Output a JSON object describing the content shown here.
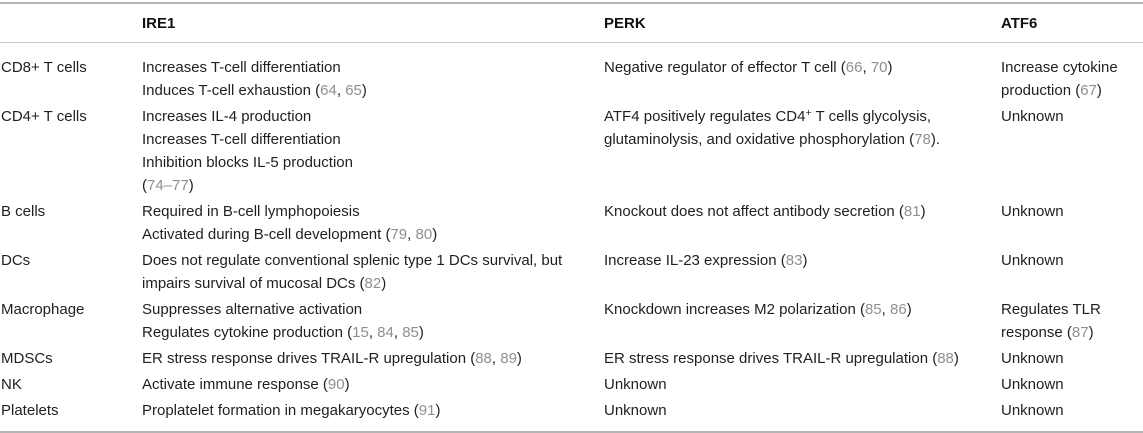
{
  "colors": {
    "text": "#1f1f1f",
    "citation_link": "#8f8f8f",
    "rule_heavy": "#b5b5b5",
    "rule_light": "#c6c6c6",
    "background": "#ffffff"
  },
  "table": {
    "columns": [
      "",
      "IRE1",
      "PERK",
      "ATF6"
    ],
    "column_keys": [
      "ire1",
      "perk",
      "atf6"
    ],
    "rows": [
      {
        "label": "CD8+ T cells",
        "cells": [
          [
            [
              {
                "t": "Increases T-cell differentiation"
              }
            ],
            [
              {
                "t": "Induces T-cell exhaustion ("
              },
              {
                "t": "64",
                "c": true
              },
              {
                "t": ", "
              },
              {
                "t": "65",
                "c": true
              },
              {
                "t": ")"
              }
            ]
          ],
          [
            [
              {
                "t": "Negative regulator of effector T cell ("
              },
              {
                "t": "66",
                "c": true
              },
              {
                "t": ", "
              },
              {
                "t": "70",
                "c": true
              },
              {
                "t": ")"
              }
            ]
          ],
          [
            [
              {
                "t": "Increase cytokine production ("
              },
              {
                "t": "67",
                "c": true
              },
              {
                "t": ")"
              }
            ]
          ]
        ]
      },
      {
        "label": "CD4+ T cells",
        "cells": [
          [
            [
              {
                "t": "Increases IL-4 production"
              }
            ],
            [
              {
                "t": "Increases T-cell differentiation"
              }
            ],
            [
              {
                "t": "Inhibition blocks IL-5 production"
              }
            ],
            [
              {
                "t": "("
              },
              {
                "t": "74–77",
                "c": true
              },
              {
                "t": ")"
              }
            ]
          ],
          [
            [
              {
                "t": "ATF4 positively regulates CD4"
              },
              {
                "t": "+",
                "sup": true
              },
              {
                "t": " T cells glycolysis, glutaminolysis, and oxidative phosphorylation ("
              },
              {
                "t": "78",
                "c": true
              },
              {
                "t": ")."
              }
            ]
          ],
          [
            [
              {
                "t": "Unknown"
              }
            ]
          ]
        ]
      },
      {
        "label": "B cells",
        "cells": [
          [
            [
              {
                "t": "Required in B-cell lymphopoiesis"
              }
            ],
            [
              {
                "t": "Activated during B-cell development ("
              },
              {
                "t": "79",
                "c": true
              },
              {
                "t": ", "
              },
              {
                "t": "80",
                "c": true
              },
              {
                "t": ")"
              }
            ]
          ],
          [
            [
              {
                "t": "Knockout does not affect antibody secretion ("
              },
              {
                "t": "81",
                "c": true
              },
              {
                "t": ")"
              }
            ]
          ],
          [
            [
              {
                "t": "Unknown"
              }
            ]
          ]
        ]
      },
      {
        "label": "DCs",
        "cells": [
          [
            [
              {
                "t": "Does not regulate conventional splenic type 1 DCs survival, but impairs survival of mucosal DCs ("
              },
              {
                "t": "82",
                "c": true
              },
              {
                "t": ")"
              }
            ]
          ],
          [
            [
              {
                "t": "Increase IL-23 expression ("
              },
              {
                "t": "83",
                "c": true
              },
              {
                "t": ")"
              }
            ]
          ],
          [
            [
              {
                "t": "Unknown"
              }
            ]
          ]
        ]
      },
      {
        "label": "Macrophage",
        "cells": [
          [
            [
              {
                "t": "Suppresses alternative activation"
              }
            ],
            [
              {
                "t": "Regulates cytokine production ("
              },
              {
                "t": "15",
                "c": true
              },
              {
                "t": ", "
              },
              {
                "t": "84",
                "c": true
              },
              {
                "t": ", "
              },
              {
                "t": "85",
                "c": true
              },
              {
                "t": ")"
              }
            ]
          ],
          [
            [
              {
                "t": "Knockdown increases M2 polarization ("
              },
              {
                "t": "85",
                "c": true
              },
              {
                "t": ", "
              },
              {
                "t": "86",
                "c": true
              },
              {
                "t": ")"
              }
            ]
          ],
          [
            [
              {
                "t": "Regulates TLR response ("
              },
              {
                "t": "87",
                "c": true
              },
              {
                "t": ")"
              }
            ]
          ]
        ]
      },
      {
        "label": "MDSCs",
        "cells": [
          [
            [
              {
                "t": "ER stress response drives TRAIL-R upregulation ("
              },
              {
                "t": "88",
                "c": true
              },
              {
                "t": ", "
              },
              {
                "t": "89",
                "c": true
              },
              {
                "t": ")"
              }
            ]
          ],
          [
            [
              {
                "t": "ER stress response drives TRAIL-R upregulation ("
              },
              {
                "t": "88",
                "c": true
              },
              {
                "t": ")"
              }
            ]
          ],
          [
            [
              {
                "t": "Unknown"
              }
            ]
          ]
        ]
      },
      {
        "label": "NK",
        "cells": [
          [
            [
              {
                "t": "Activate immune response ("
              },
              {
                "t": "90",
                "c": true
              },
              {
                "t": ")"
              }
            ]
          ],
          [
            [
              {
                "t": "Unknown"
              }
            ]
          ],
          [
            [
              {
                "t": "Unknown"
              }
            ]
          ]
        ]
      },
      {
        "label": "Platelets",
        "cells": [
          [
            [
              {
                "t": "Proplatelet formation in megakaryocytes ("
              },
              {
                "t": "91",
                "c": true
              },
              {
                "t": ")"
              }
            ]
          ],
          [
            [
              {
                "t": "Unknown"
              }
            ]
          ],
          [
            [
              {
                "t": "Unknown"
              }
            ]
          ]
        ]
      }
    ]
  }
}
